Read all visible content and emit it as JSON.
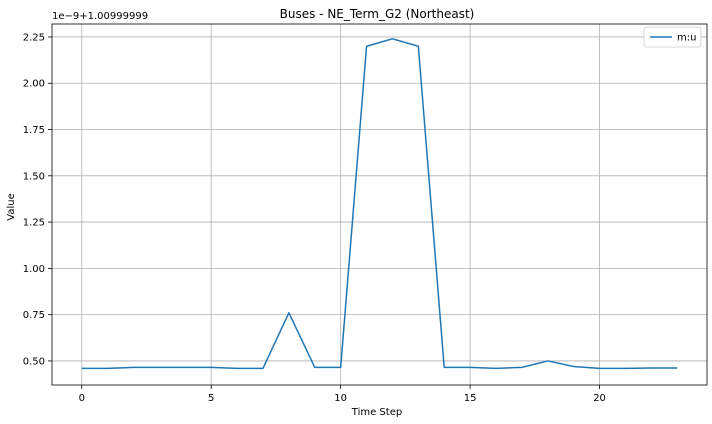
{
  "chart_data": {
    "type": "line",
    "title": "Buses - NE_Term_G2 (Northeast)",
    "xlabel": "Time Step",
    "ylabel": "Value",
    "offset_label": "1e−9+1.00999999",
    "xlim": [
      -1.15,
      24.15
    ],
    "ylim": [
      0.37,
      2.32
    ],
    "xticks": [
      0,
      5,
      10,
      15,
      20
    ],
    "yticks": [
      0.5,
      0.75,
      1.0,
      1.25,
      1.5,
      1.75,
      2.0,
      2.25
    ],
    "ytick_labels": [
      "0.50",
      "0.75",
      "1.00",
      "1.25",
      "1.50",
      "1.75",
      "2.00",
      "2.25"
    ],
    "grid": true,
    "legend_position": "upper right",
    "series": [
      {
        "name": "m:u",
        "color": "#1f77b4",
        "x": [
          0,
          1,
          2,
          3,
          4,
          5,
          6,
          7,
          8,
          9,
          10,
          11,
          12,
          13,
          14,
          15,
          16,
          17,
          18,
          19,
          20,
          21,
          22,
          23
        ],
        "values": [
          0.46,
          0.46,
          0.465,
          0.465,
          0.465,
          0.465,
          0.46,
          0.46,
          0.76,
          0.465,
          0.465,
          2.2,
          2.24,
          2.2,
          0.465,
          0.465,
          0.46,
          0.465,
          0.5,
          0.47,
          0.46,
          0.46,
          0.462,
          0.462
        ]
      }
    ]
  }
}
